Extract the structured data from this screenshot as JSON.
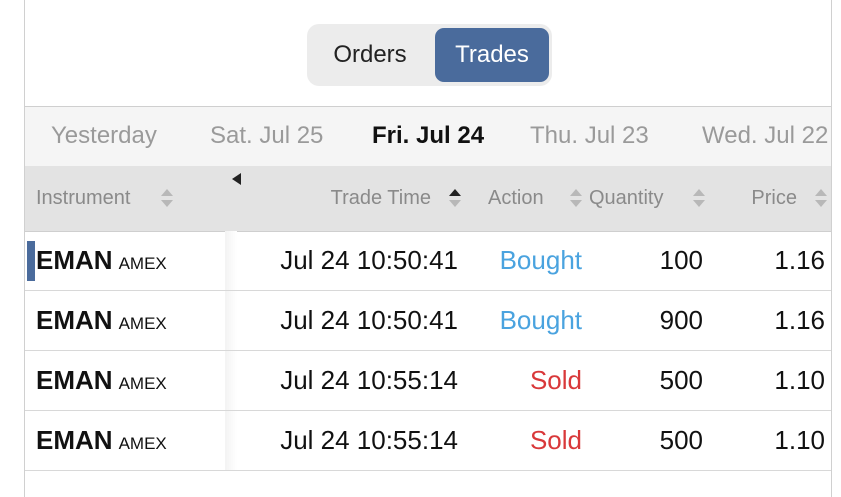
{
  "segmented": {
    "options": [
      "Orders",
      "Trades"
    ],
    "selected": 1
  },
  "dates": {
    "items": [
      "Yesterday",
      "Sat. Jul 25",
      "Fri. Jul 24",
      "Thu. Jul 23",
      "Wed. Jul 22"
    ],
    "selected": 2
  },
  "table": {
    "columns": [
      "Instrument",
      "Trade Time",
      "Action",
      "Quantity",
      "Price"
    ],
    "sorted_column": 1,
    "rows": [
      {
        "instrument": "EMAN",
        "exchange": "AMEX",
        "time": "Jul 24 10:50:41",
        "action": "Bought",
        "action_color": "#4aa3df",
        "quantity": "100",
        "price": "1.16"
      },
      {
        "instrument": "EMAN",
        "exchange": "AMEX",
        "time": "Jul 24 10:50:41",
        "action": "Bought",
        "action_color": "#4aa3df",
        "quantity": "900",
        "price": "1.16"
      },
      {
        "instrument": "EMAN",
        "exchange": "AMEX",
        "time": "Jul 24 10:55:14",
        "action": "Sold",
        "action_color": "#d9383a",
        "quantity": "500",
        "price": "1.10"
      },
      {
        "instrument": "EMAN",
        "exchange": "AMEX",
        "time": "Jul 24 10:55:14",
        "action": "Sold",
        "action_color": "#d9383a",
        "quantity": "500",
        "price": "1.10"
      }
    ]
  }
}
